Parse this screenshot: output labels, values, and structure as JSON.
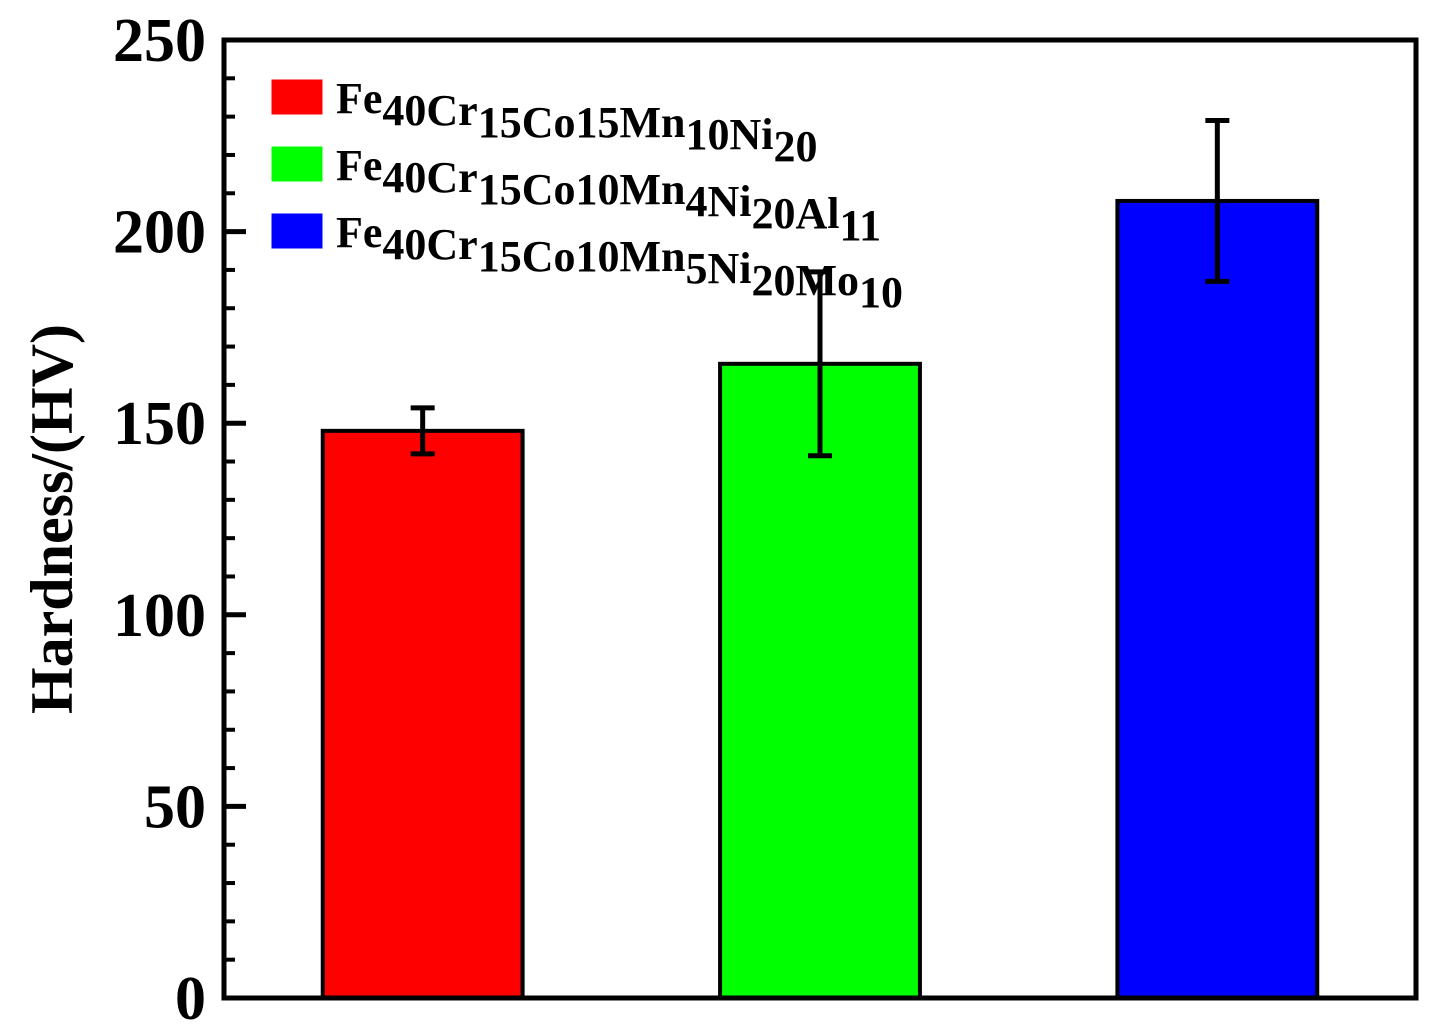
{
  "chart_data": {
    "type": "bar",
    "ylabel": "Hardness/(HV)",
    "xlabel": "",
    "ylim": [
      0,
      250
    ],
    "yticks": [
      0,
      50,
      100,
      150,
      200,
      250
    ],
    "grid": false,
    "legend_position": "top-left",
    "series": [
      {
        "name": "Fe40Cr15Co15Mn10Ni20",
        "label_parts": [
          {
            "t": "Fe",
            "sub": false
          },
          {
            "t": "40",
            "sub": true
          },
          {
            "t": "Cr",
            "sub": false
          },
          {
            "t": "15",
            "sub": true
          },
          {
            "t": "Co15",
            "sub": false
          },
          {
            "t": "Mn",
            "sub": false
          },
          {
            "t": "10",
            "sub": true
          },
          {
            "t": "Ni",
            "sub": false
          },
          {
            "t": "20",
            "sub": true
          }
        ],
        "value": 148,
        "error": 6,
        "color": "#ff0000"
      },
      {
        "name": "Fe40Cr15Co10Mn4Ni20Al11",
        "label_parts": [
          {
            "t": "Fe",
            "sub": false
          },
          {
            "t": "40",
            "sub": true
          },
          {
            "t": "Cr",
            "sub": false
          },
          {
            "t": "15",
            "sub": true
          },
          {
            "t": "Co10",
            "sub": false
          },
          {
            "t": "Mn",
            "sub": false
          },
          {
            "t": "4",
            "sub": true
          },
          {
            "t": "Ni",
            "sub": false
          },
          {
            "t": "20",
            "sub": true
          },
          {
            "t": "Al",
            "sub": false
          },
          {
            "t": "11",
            "sub": true
          }
        ],
        "value": 165.5,
        "error": 24,
        "color": "#00ff00"
      },
      {
        "name": "Fe40Cr15Co10Mn5Ni20Mo10",
        "label_parts": [
          {
            "t": "Fe",
            "sub": false
          },
          {
            "t": "40",
            "sub": true
          },
          {
            "t": "Cr",
            "sub": false
          },
          {
            "t": "15",
            "sub": true
          },
          {
            "t": "Co10",
            "sub": false
          },
          {
            "t": "Mn",
            "sub": false
          },
          {
            "t": "5",
            "sub": true
          },
          {
            "t": "Ni",
            "sub": false
          },
          {
            "t": "20",
            "sub": true
          },
          {
            "t": "Mo",
            "sub": false
          },
          {
            "t": "10",
            "sub": true
          }
        ],
        "value": 208,
        "error": 21,
        "color": "#0000ff"
      }
    ]
  }
}
